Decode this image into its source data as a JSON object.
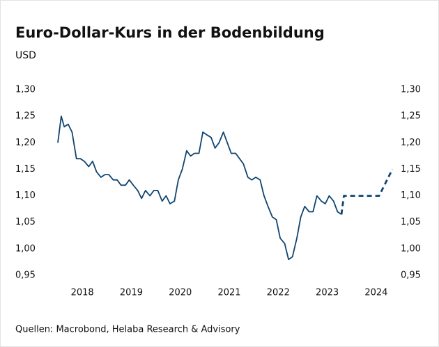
{
  "chart_data": {
    "type": "line",
    "title": "Euro-Dollar-Kurs in der Bodenbildung",
    "y_axis_label": "USD",
    "source": "Quellen: Macrobond, Helaba Research & Advisory",
    "xlim": [
      2017.9,
      2024.9
    ],
    "xticks": [
      {
        "value": 2018.5,
        "label": "2018"
      },
      {
        "value": 2019.5,
        "label": "2019"
      },
      {
        "value": 2020.5,
        "label": "2020"
      },
      {
        "value": 2021.5,
        "label": "2021"
      },
      {
        "value": 2022.5,
        "label": "2022"
      },
      {
        "value": 2023.5,
        "label": "2023"
      },
      {
        "value": 2024.5,
        "label": "2024"
      }
    ],
    "ylim": [
      0.95,
      1.3
    ],
    "yticks": [
      {
        "value": 0.95,
        "label": "0,95"
      },
      {
        "value": 1.0,
        "label": "1,00"
      },
      {
        "value": 1.05,
        "label": "1,05"
      },
      {
        "value": 1.1,
        "label": "1,10"
      },
      {
        "value": 1.15,
        "label": "1,15"
      },
      {
        "value": 1.2,
        "label": "1,20"
      },
      {
        "value": 1.25,
        "label": "1,25"
      },
      {
        "value": 1.3,
        "label": "1,30"
      }
    ],
    "y2lim": [
      0.95,
      1.3
    ],
    "y2ticks": [
      {
        "value": 0.95,
        "label": "0,95"
      },
      {
        "value": 1.0,
        "label": "1,00"
      },
      {
        "value": 1.05,
        "label": "1,05"
      },
      {
        "value": 1.1,
        "label": "1,10"
      },
      {
        "value": 1.15,
        "label": "1,15"
      },
      {
        "value": 1.2,
        "label": "1,20"
      },
      {
        "value": 1.25,
        "label": "1,25"
      },
      {
        "value": 1.3,
        "label": "1,30"
      }
    ],
    "grid": false,
    "series": [
      {
        "color": "#0f4470",
        "dashed": false,
        "x": [
          2018.0,
          2018.07,
          2018.13,
          2018.21,
          2018.29,
          2018.38,
          2018.46,
          2018.54,
          2018.63,
          2018.71,
          2018.79,
          2018.88,
          2018.96,
          2019.04,
          2019.13,
          2019.21,
          2019.29,
          2019.38,
          2019.46,
          2019.54,
          2019.63,
          2019.71,
          2019.79,
          2019.88,
          2019.96,
          2020.04,
          2020.13,
          2020.21,
          2020.29,
          2020.38,
          2020.46,
          2020.54,
          2020.63,
          2020.71,
          2020.79,
          2020.88,
          2020.96,
          2021.04,
          2021.13,
          2021.21,
          2021.29,
          2021.38,
          2021.46,
          2021.54,
          2021.63,
          2021.71,
          2021.79,
          2021.88,
          2021.96,
          2022.04,
          2022.13,
          2022.21,
          2022.29,
          2022.38,
          2022.46,
          2022.54,
          2022.63,
          2022.71,
          2022.79,
          2022.88,
          2022.96,
          2023.04,
          2023.13,
          2023.21,
          2023.29,
          2023.38,
          2023.46,
          2023.54,
          2023.63,
          2023.71,
          2023.79
        ],
        "values": [
          1.2,
          1.25,
          1.23,
          1.235,
          1.22,
          1.17,
          1.17,
          1.165,
          1.155,
          1.165,
          1.145,
          1.135,
          1.14,
          1.14,
          1.13,
          1.13,
          1.12,
          1.12,
          1.13,
          1.12,
          1.11,
          1.095,
          1.11,
          1.1,
          1.11,
          1.11,
          1.09,
          1.1,
          1.085,
          1.09,
          1.13,
          1.15,
          1.185,
          1.175,
          1.18,
          1.18,
          1.22,
          1.215,
          1.21,
          1.19,
          1.2,
          1.22,
          1.2,
          1.18,
          1.18,
          1.17,
          1.16,
          1.135,
          1.13,
          1.135,
          1.13,
          1.1,
          1.08,
          1.06,
          1.055,
          1.02,
          1.01,
          0.98,
          0.985,
          1.02,
          1.06,
          1.08,
          1.07,
          1.07,
          1.1,
          1.09,
          1.085,
          1.1,
          1.09,
          1.07,
          1.065
        ]
      },
      {
        "color": "#0f4470",
        "dashed": true,
        "x": [
          2023.79,
          2023.84,
          2024.56,
          2024.83
        ],
        "values": [
          1.065,
          1.1,
          1.1,
          1.15
        ]
      }
    ]
  }
}
